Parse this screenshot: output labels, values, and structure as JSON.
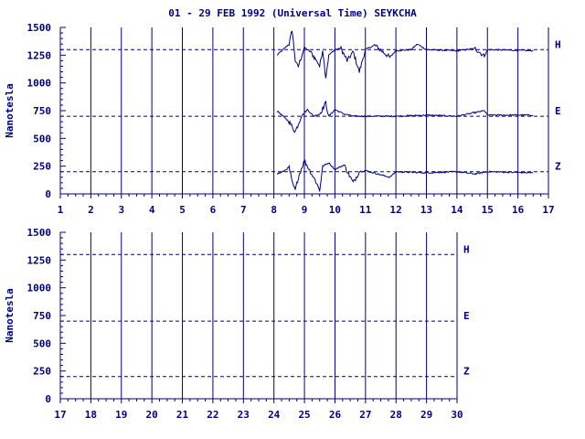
{
  "title": "01 - 29 FEB 1992 (Universal Time) SEYKCHA",
  "colors": {
    "axis": "#000080",
    "trace": "#000080",
    "background": "#ffffff"
  },
  "chart_data": [
    {
      "type": "line",
      "ylabel": "Nanotesla",
      "xlim": [
        1,
        17
      ],
      "ylim": [
        0,
        1500
      ],
      "yticks": [
        0,
        250,
        500,
        750,
        1000,
        1250,
        1500
      ],
      "xticks": [
        1,
        2,
        3,
        4,
        5,
        6,
        7,
        8,
        9,
        10,
        11,
        12,
        13,
        14,
        15,
        16,
        17
      ],
      "grid": "vertical lines at each day",
      "baselines": [
        {
          "name": "H",
          "value": 1300
        },
        {
          "name": "E",
          "value": 700
        },
        {
          "name": "Z",
          "value": 200
        }
      ],
      "series": [
        {
          "name": "H",
          "data_start": 8.1,
          "data_end": 16.5,
          "points": [
            [
              8.1,
              1250
            ],
            [
              8.3,
              1300
            ],
            [
              8.5,
              1350
            ],
            [
              8.6,
              1480
            ],
            [
              8.7,
              1200
            ],
            [
              8.8,
              1150
            ],
            [
              9.0,
              1320
            ],
            [
              9.2,
              1280
            ],
            [
              9.4,
              1200
            ],
            [
              9.5,
              1150
            ],
            [
              9.6,
              1300
            ],
            [
              9.7,
              1050
            ],
            [
              9.8,
              1250
            ],
            [
              10.0,
              1300
            ],
            [
              10.2,
              1310
            ],
            [
              10.4,
              1200
            ],
            [
              10.6,
              1280
            ],
            [
              10.8,
              1100
            ],
            [
              11.0,
              1300
            ],
            [
              11.3,
              1340
            ],
            [
              11.8,
              1230
            ],
            [
              12.0,
              1290
            ],
            [
              12.5,
              1300
            ],
            [
              12.7,
              1350
            ],
            [
              13.0,
              1300
            ],
            [
              14.0,
              1290
            ],
            [
              14.6,
              1310
            ],
            [
              14.9,
              1240
            ],
            [
              15.0,
              1300
            ],
            [
              16.5,
              1290
            ]
          ]
        },
        {
          "name": "E",
          "data_start": 8.1,
          "data_end": 16.5,
          "points": [
            [
              8.1,
              750
            ],
            [
              8.3,
              700
            ],
            [
              8.5,
              650
            ],
            [
              8.7,
              560
            ],
            [
              8.9,
              700
            ],
            [
              9.1,
              760
            ],
            [
              9.3,
              700
            ],
            [
              9.5,
              720
            ],
            [
              9.7,
              820
            ],
            [
              9.8,
              700
            ],
            [
              10.0,
              760
            ],
            [
              10.3,
              720
            ],
            [
              10.6,
              700
            ],
            [
              11.0,
              700
            ],
            [
              12.0,
              700
            ],
            [
              13.0,
              710
            ],
            [
              14.0,
              700
            ],
            [
              14.9,
              750
            ],
            [
              15.0,
              710
            ],
            [
              16.5,
              710
            ]
          ]
        },
        {
          "name": "Z",
          "data_start": 8.1,
          "data_end": 16.5,
          "points": [
            [
              8.1,
              180
            ],
            [
              8.3,
              200
            ],
            [
              8.5,
              240
            ],
            [
              8.6,
              100
            ],
            [
              8.7,
              30
            ],
            [
              8.8,
              150
            ],
            [
              9.0,
              300
            ],
            [
              9.2,
              200
            ],
            [
              9.4,
              100
            ],
            [
              9.5,
              30
            ],
            [
              9.6,
              250
            ],
            [
              9.8,
              280
            ],
            [
              10.0,
              220
            ],
            [
              10.3,
              260
            ],
            [
              10.6,
              100
            ],
            [
              10.8,
              200
            ],
            [
              11.0,
              210
            ],
            [
              11.8,
              150
            ],
            [
              12.0,
              200
            ],
            [
              13.0,
              190
            ],
            [
              14.0,
              200
            ],
            [
              14.6,
              180
            ],
            [
              15.0,
              200
            ],
            [
              16.5,
              190
            ]
          ]
        }
      ]
    },
    {
      "type": "line",
      "ylabel": "Nanotesla",
      "xlim": [
        17,
        30
      ],
      "ylim": [
        0,
        1500
      ],
      "yticks": [
        0,
        250,
        500,
        750,
        1000,
        1250,
        1500
      ],
      "xticks": [
        17,
        18,
        19,
        20,
        21,
        22,
        23,
        24,
        25,
        26,
        27,
        28,
        29,
        30
      ],
      "grid": "vertical lines at each day",
      "baselines": [
        {
          "name": "H",
          "value": 1300
        },
        {
          "name": "E",
          "value": 700
        },
        {
          "name": "Z",
          "value": 200
        }
      ],
      "series": []
    }
  ]
}
